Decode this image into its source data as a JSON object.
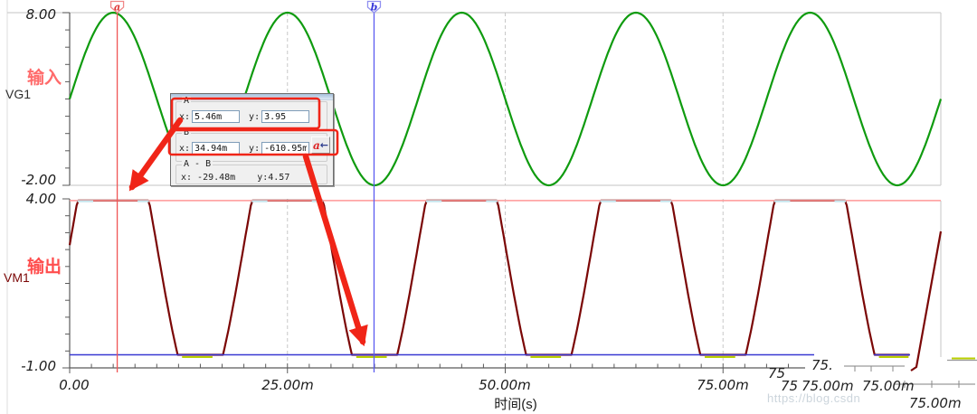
{
  "panels": {
    "input": {
      "label": "输入",
      "source": "VG1",
      "y_top": "8.00",
      "y_bottom": "-2.00"
    },
    "output": {
      "label": "输出",
      "source": "VM1",
      "y_top": "4.00",
      "y_bottom": "-1.00"
    }
  },
  "x_axis": {
    "title": "时间(s)",
    "tick_labels": [
      "0.00",
      "25.00m",
      "50.00m",
      "75.00m"
    ],
    "major_ticks_ms": [
      0,
      25,
      50,
      75
    ]
  },
  "cursors": {
    "a": {
      "label": "a",
      "x_ms": 5.46,
      "x_text": "5.46m",
      "y_value": 3.95,
      "y_text": "3.95",
      "line_color": "#f05555",
      "flag_stroke": "#f08888",
      "letter_color": "#dd3333"
    },
    "b": {
      "label": "b",
      "x_ms": 34.94,
      "x_text": "34.94m",
      "y_value": -0.61095,
      "y_text": "-610.95m",
      "line_color": "#5b5bf0",
      "flag_stroke": "#9090f0",
      "letter_color": "#3535d8"
    }
  },
  "measurement_box": {
    "group_a": {
      "title": "A",
      "x_label": "x:",
      "x_value": "5.46m",
      "y_label": "y:",
      "y_value": "3.95"
    },
    "group_b": {
      "title": "B",
      "x_label": "x:",
      "x_value": "34.94m",
      "y_label": "y:",
      "y_value": "-610.95m",
      "jump_button_label": "a",
      "jump_button_arrow": "←"
    },
    "group_diff": {
      "title": "A - B",
      "x_text": "x: -29.48m",
      "y_text": "y:4.57"
    }
  },
  "glitch_labels": [
    "75.",
    "75",
    "75",
    "75.00m",
    "75.00m",
    "75.00m"
  ],
  "watermark": "https://blog.csdn",
  "decor": {
    "cursor_a_hline": "#ff9898",
    "cursor_b_hline": "#3939d2",
    "rail_cyan": "#c5e6ee",
    "rail_olive": "#b9cf00"
  },
  "chart_data": [
    {
      "type": "line",
      "name": "VG1 input sine",
      "color": "#0f9b0f",
      "x_unit": "ms",
      "x_range": [
        0,
        100
      ],
      "ylim": [
        -2,
        8
      ],
      "waveform": "sine",
      "frequency_hz": 50,
      "amplitude": 5,
      "offset": 3,
      "phase_deg": 0,
      "y_tick_labels": [
        "8.00",
        "-2.00"
      ],
      "grid": "dashed-vertical-at-25ms-majors"
    },
    {
      "type": "line",
      "name": "VM1 output clipped",
      "color": "#7b0706",
      "x_unit": "ms",
      "x_range": [
        0,
        96.5
      ],
      "ylim": [
        -1,
        4
      ],
      "waveform": "clipped-sine",
      "frequency_hz": 50,
      "amplitude": 4.74,
      "offset": 2.63,
      "phase_deg": 0,
      "clip_high": 3.95,
      "clip_low": -0.611,
      "y_tick_labels": [
        "4.00",
        "-1.00"
      ]
    }
  ]
}
